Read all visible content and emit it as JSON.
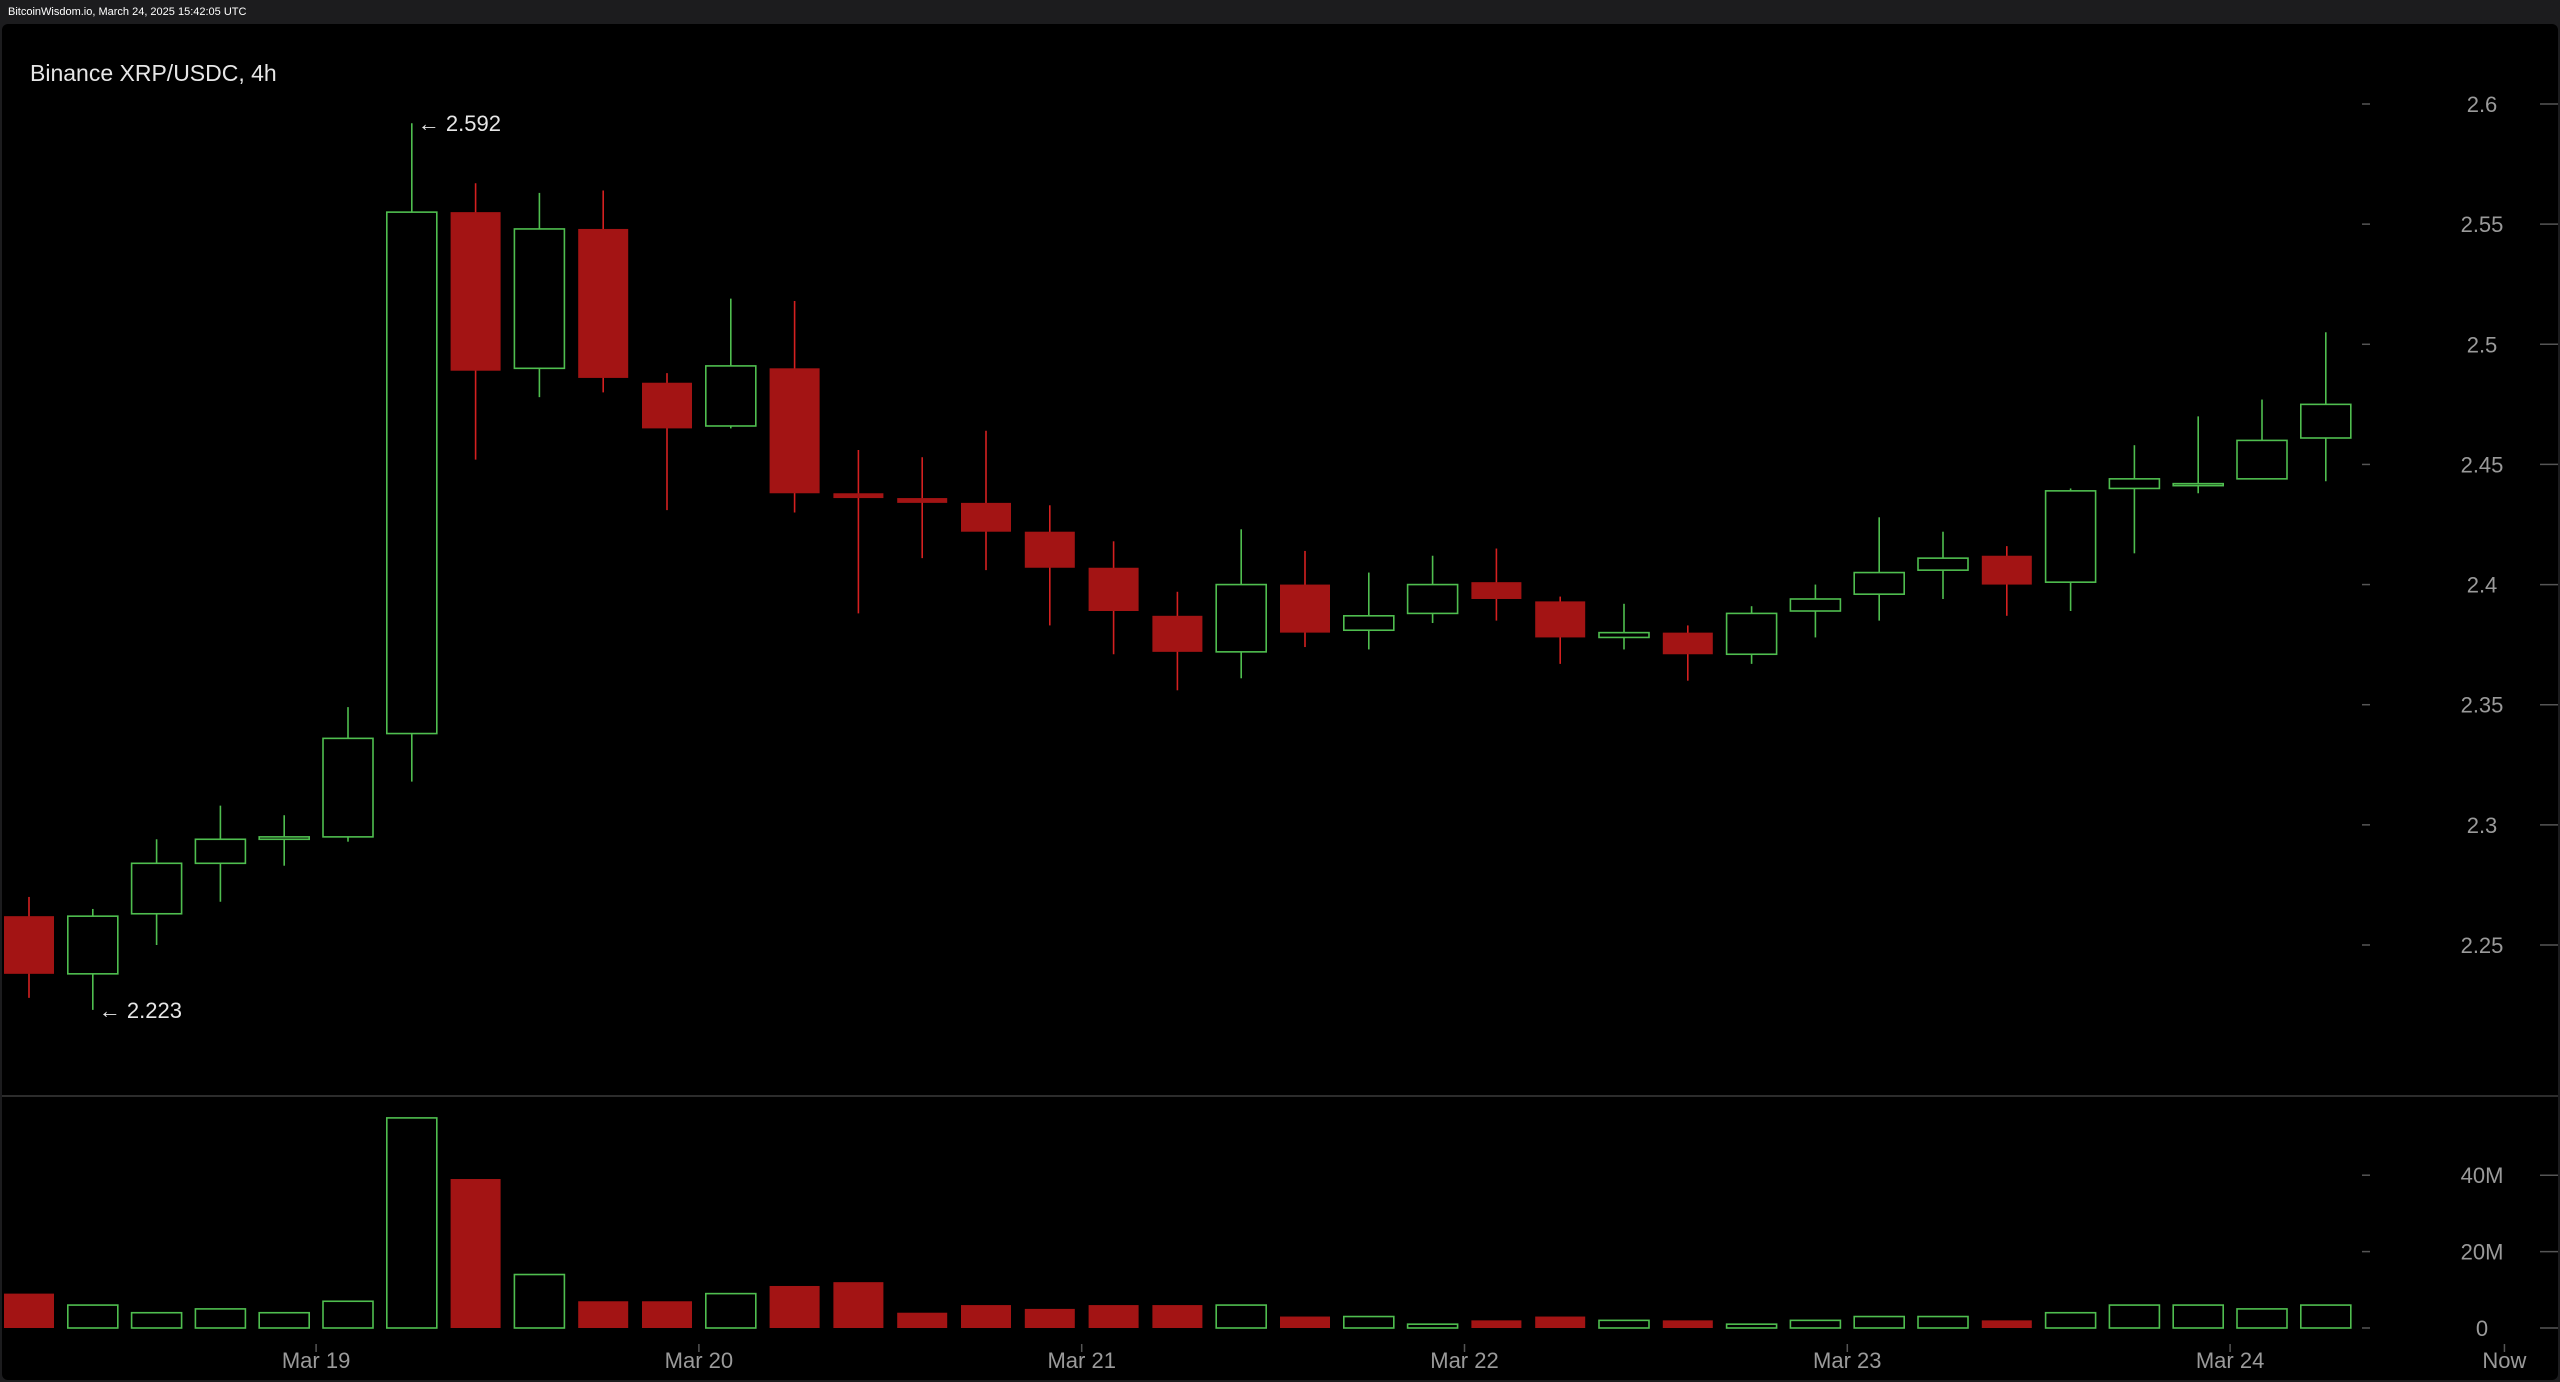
{
  "header": {
    "watermark": "BitcoinWisdom.io, March 24, 2025 15:42:05 UTC"
  },
  "colors": {
    "up": "#4fbe4f",
    "down": "#a31414",
    "down_wick": "#d42020",
    "background": "#000000",
    "axis_text": "#9a9a9a",
    "separator": "#3a3a3a"
  },
  "chart_data": {
    "type": "candlestick",
    "title": "Binance XRP/USDC, 4h",
    "price_axis": {
      "ticks": [
        "2.25",
        "2.3",
        "2.35",
        "2.4",
        "2.45",
        "2.5",
        "2.55",
        "2.6"
      ],
      "range": [
        2.19,
        2.62
      ]
    },
    "volume_axis": {
      "ticks": [
        "0",
        "20M",
        "40M"
      ],
      "unit": "M",
      "range": [
        0,
        60
      ]
    },
    "x_axis": {
      "labels": [
        "Mar 19",
        "Mar 20",
        "Mar 21",
        "Mar 22",
        "Mar 23",
        "Mar 24",
        "Now"
      ],
      "label_positions": [
        4.5,
        10.5,
        16.5,
        22.5,
        28.5,
        34.5,
        38.8
      ]
    },
    "annotations": {
      "high": "← 2.592",
      "high_index": 6,
      "low": "← 2.223",
      "low_index": 1
    },
    "candles": [
      {
        "o": 2.262,
        "h": 2.27,
        "l": 2.228,
        "c": 2.238,
        "v": 9
      },
      {
        "o": 2.238,
        "h": 2.265,
        "l": 2.223,
        "c": 2.262,
        "v": 6
      },
      {
        "o": 2.263,
        "h": 2.294,
        "l": 2.25,
        "c": 2.284,
        "v": 4
      },
      {
        "o": 2.284,
        "h": 2.308,
        "l": 2.268,
        "c": 2.294,
        "v": 5
      },
      {
        "o": 2.294,
        "h": 2.304,
        "l": 2.283,
        "c": 2.295,
        "v": 4
      },
      {
        "o": 2.295,
        "h": 2.349,
        "l": 2.293,
        "c": 2.336,
        "v": 7
      },
      {
        "o": 2.338,
        "h": 2.592,
        "l": 2.318,
        "c": 2.555,
        "v": 55
      },
      {
        "o": 2.555,
        "h": 2.567,
        "l": 2.452,
        "c": 2.489,
        "v": 39
      },
      {
        "o": 2.49,
        "h": 2.563,
        "l": 2.478,
        "c": 2.548,
        "v": 14
      },
      {
        "o": 2.548,
        "h": 2.564,
        "l": 2.48,
        "c": 2.486,
        "v": 7
      },
      {
        "o": 2.484,
        "h": 2.488,
        "l": 2.431,
        "c": 2.465,
        "v": 7
      },
      {
        "o": 2.466,
        "h": 2.519,
        "l": 2.465,
        "c": 2.491,
        "v": 9
      },
      {
        "o": 2.49,
        "h": 2.518,
        "l": 2.43,
        "c": 2.438,
        "v": 11
      },
      {
        "o": 2.438,
        "h": 2.456,
        "l": 2.388,
        "c": 2.436,
        "v": 12
      },
      {
        "o": 2.436,
        "h": 2.453,
        "l": 2.411,
        "c": 2.434,
        "v": 4
      },
      {
        "o": 2.434,
        "h": 2.464,
        "l": 2.406,
        "c": 2.422,
        "v": 6
      },
      {
        "o": 2.422,
        "h": 2.433,
        "l": 2.383,
        "c": 2.407,
        "v": 5
      },
      {
        "o": 2.407,
        "h": 2.418,
        "l": 2.371,
        "c": 2.389,
        "v": 6
      },
      {
        "o": 2.387,
        "h": 2.397,
        "l": 2.356,
        "c": 2.372,
        "v": 6
      },
      {
        "o": 2.372,
        "h": 2.423,
        "l": 2.361,
        "c": 2.4,
        "v": 6
      },
      {
        "o": 2.4,
        "h": 2.414,
        "l": 2.374,
        "c": 2.38,
        "v": 3
      },
      {
        "o": 2.381,
        "h": 2.405,
        "l": 2.373,
        "c": 2.387,
        "v": 3
      },
      {
        "o": 2.388,
        "h": 2.412,
        "l": 2.384,
        "c": 2.4,
        "v": 1
      },
      {
        "o": 2.401,
        "h": 2.415,
        "l": 2.385,
        "c": 2.394,
        "v": 2
      },
      {
        "o": 2.393,
        "h": 2.395,
        "l": 2.367,
        "c": 2.378,
        "v": 3
      },
      {
        "o": 2.378,
        "h": 2.392,
        "l": 2.373,
        "c": 2.38,
        "v": 2
      },
      {
        "o": 2.38,
        "h": 2.383,
        "l": 2.36,
        "c": 2.371,
        "v": 2
      },
      {
        "o": 2.371,
        "h": 2.391,
        "l": 2.367,
        "c": 2.388,
        "v": 1
      },
      {
        "o": 2.389,
        "h": 2.4,
        "l": 2.378,
        "c": 2.394,
        "v": 2
      },
      {
        "o": 2.396,
        "h": 2.428,
        "l": 2.385,
        "c": 2.405,
        "v": 3
      },
      {
        "o": 2.406,
        "h": 2.422,
        "l": 2.394,
        "c": 2.411,
        "v": 3
      },
      {
        "o": 2.412,
        "h": 2.416,
        "l": 2.387,
        "c": 2.4,
        "v": 2
      },
      {
        "o": 2.401,
        "h": 2.44,
        "l": 2.389,
        "c": 2.439,
        "v": 4
      },
      {
        "o": 2.44,
        "h": 2.458,
        "l": 2.413,
        "c": 2.444,
        "v": 6
      },
      {
        "o": 2.442,
        "h": 2.47,
        "l": 2.438,
        "c": 2.442,
        "v": 6
      },
      {
        "o": 2.444,
        "h": 2.477,
        "l": 2.444,
        "c": 2.46,
        "v": 5
      },
      {
        "o": 2.461,
        "h": 2.505,
        "l": 2.443,
        "c": 2.475,
        "v": 6
      }
    ]
  }
}
